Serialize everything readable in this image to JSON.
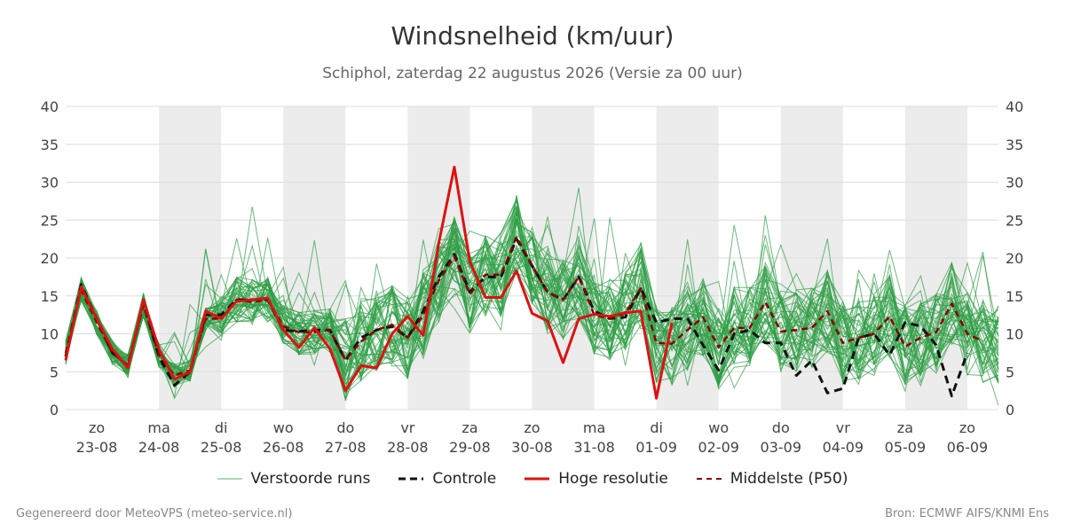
{
  "title": "Windsnelheid (km/uur)",
  "subtitle": "Schiphol, zaterdag 22 augustus 2026 (Versie za 00 uur)",
  "footer_left": "Gegenereerd door MeteoVPS (meteo-service.nl)",
  "footer_right": "Bron: ECMWF AIFS/KNMI Ens",
  "legend": {
    "ens": "Verstoorde runs",
    "control": "Controle",
    "hires": "Hoge resolutie",
    "median": "Middelste (P50)"
  },
  "colors": {
    "ens": "#2e9e44",
    "control": "#111111",
    "hires": "#dd1111",
    "median": "#8b0000",
    "shade": "#ececec",
    "grid": "#dddddd"
  },
  "chart_data": {
    "type": "line",
    "ylim": [
      0,
      40
    ],
    "yticks": [
      0,
      5,
      10,
      15,
      20,
      25,
      30,
      35,
      40
    ],
    "x_unit": "days since 22-08 00:00",
    "xlim": [
      0.5,
      15.5
    ],
    "xticks": [
      {
        "day": "zo",
        "date": "23-08"
      },
      {
        "day": "ma",
        "date": "24-08"
      },
      {
        "day": "di",
        "date": "25-08"
      },
      {
        "day": "wo",
        "date": "26-08"
      },
      {
        "day": "do",
        "date": "27-08"
      },
      {
        "day": "vr",
        "date": "28-08"
      },
      {
        "day": "za",
        "date": "29-08"
      },
      {
        "day": "zo",
        "date": "30-08"
      },
      {
        "day": "ma",
        "date": "31-08"
      },
      {
        "day": "di",
        "date": "01-09"
      },
      {
        "day": "wo",
        "date": "02-09"
      },
      {
        "day": "do",
        "date": "03-09"
      },
      {
        "day": "vr",
        "date": "04-09"
      },
      {
        "day": "za",
        "date": "05-09"
      },
      {
        "day": "zo",
        "date": "06-09"
      }
    ],
    "shaded_days": [
      "24-08",
      "26-08",
      "28-08",
      "30-08",
      "01-09",
      "03-09",
      "05-09"
    ],
    "x": [
      0.5,
      0.75,
      1.0,
      1.25,
      1.5,
      1.75,
      2.0,
      2.25,
      2.5,
      2.75,
      3.0,
      3.25,
      3.5,
      3.75,
      4.0,
      4.25,
      4.5,
      4.75,
      5.0,
      5.25,
      5.5,
      5.75,
      6.0,
      6.25,
      6.5,
      6.75,
      7.0,
      7.25,
      7.5,
      7.75,
      8.0,
      8.25,
      8.5,
      8.75,
      9.0,
      9.25,
      9.5,
      9.75,
      10.0,
      10.25,
      10.5,
      10.75,
      11.0,
      11.25,
      11.5,
      11.75,
      12.0,
      12.25,
      12.5,
      12.75,
      13.0,
      13.25,
      13.5,
      13.75,
      14.0,
      14.25,
      14.5,
      14.75,
      15.0,
      15.25,
      15.5
    ],
    "series": [
      {
        "name": "Hoge resolutie",
        "role": "hires",
        "values": [
          6.5,
          16.2,
          12,
          8,
          5.5,
          14.5,
          8,
          4,
          5,
          13,
          12,
          14.3,
          14.5,
          14.7,
          10.5,
          8.2,
          10.8,
          8,
          2.5,
          5.8,
          5.5,
          10,
          12.3,
          9.8,
          22,
          32,
          19.5,
          14.8,
          14.8,
          18.3,
          12.7,
          11.7,
          6.2,
          12,
          12.6,
          12.3,
          12.8,
          13,
          1.5,
          11.5,
          null,
          null,
          null,
          null,
          null,
          null,
          null,
          null,
          null,
          null,
          null,
          null,
          null,
          null,
          null,
          null,
          null,
          null,
          null,
          null,
          null
        ]
      },
      {
        "name": "Controle",
        "role": "control",
        "values": [
          7,
          16.5,
          12,
          7.5,
          5.8,
          14,
          7,
          3.2,
          5,
          12.5,
          12.5,
          14.5,
          14.5,
          14.5,
          10.5,
          10.3,
          10.5,
          10.5,
          6.5,
          9.5,
          10.5,
          11,
          9.5,
          13,
          17.5,
          20.5,
          15.5,
          17.5,
          17.5,
          22.5,
          19,
          15.5,
          14.5,
          17.5,
          13,
          12,
          12.2,
          16,
          11.5,
          12,
          12,
          8.5,
          5.2,
          10,
          10.5,
          8.8,
          8.8,
          4.5,
          6.5,
          2.2,
          2.8,
          9.5,
          10,
          7.2,
          11.5,
          11,
          8.5,
          1.8,
          7.5,
          null,
          null
        ]
      },
      {
        "name": "Middelste (P50)",
        "role": "median",
        "values": [
          7.5,
          15.8,
          11.5,
          7.5,
          5.8,
          13.8,
          7.2,
          4.5,
          5.2,
          12,
          12,
          14.5,
          14.2,
          14.5,
          11,
          10.2,
          10.2,
          10.5,
          6.5,
          9,
          10.5,
          11.2,
          9.5,
          12.5,
          17,
          20.2,
          15.2,
          17.8,
          17.8,
          22.8,
          19,
          15.5,
          14.5,
          17.5,
          12.5,
          12,
          12.7,
          16,
          8.8,
          8.7,
          10.5,
          12.2,
          8.2,
          10.8,
          10.8,
          14.2,
          10.3,
          10.5,
          10.8,
          13,
          8.8,
          9.5,
          10,
          12.3,
          8.3,
          9.5,
          10.2,
          14,
          10,
          9,
          null
        ]
      }
    ]
  }
}
